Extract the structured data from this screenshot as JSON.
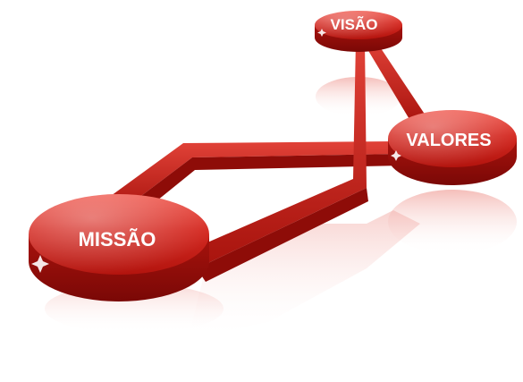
{
  "diagram": {
    "nodes": [
      {
        "id": "missao",
        "label": "MISSÃO"
      },
      {
        "id": "visao",
        "label": "VISÃO"
      },
      {
        "id": "valores",
        "label": "VALORES"
      }
    ],
    "colors": {
      "disc_top_light": "#e8463e",
      "disc_top_mid": "#d42a22",
      "disc_top_dark": "#b3140e",
      "disc_side": "#8e0c08",
      "path_light": "#d93a31",
      "path_dark": "#a8130d",
      "reflection": "#f6c2bf",
      "label": "#ffffff"
    }
  }
}
